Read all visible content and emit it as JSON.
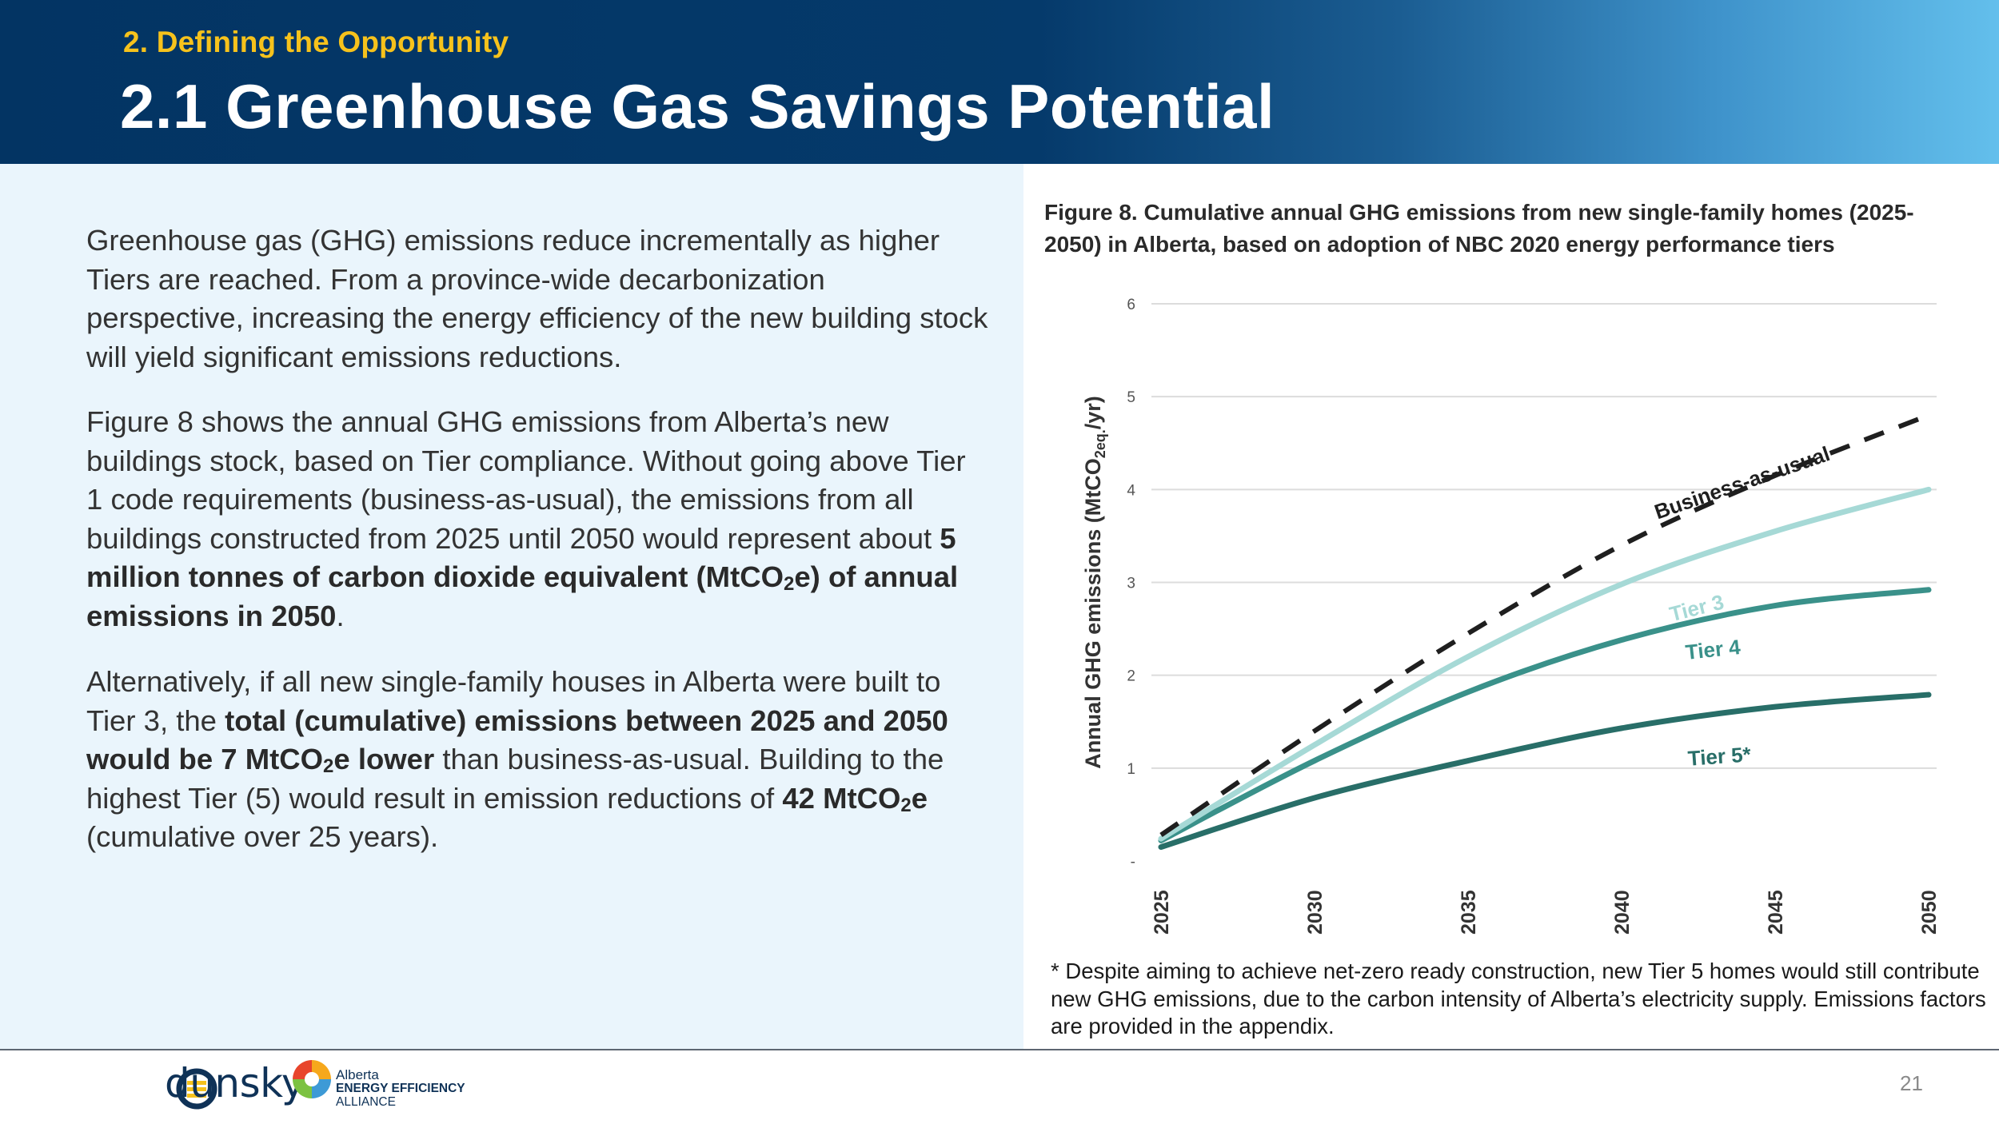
{
  "header": {
    "section_label": "2. Defining the Opportunity",
    "title": "2.1 Greenhouse Gas Savings Potential"
  },
  "body": {
    "p1": "Greenhouse gas (GHG) emissions reduce incrementally as higher Tiers are reached. From a province-wide decarbonization perspective, increasing the energy efficiency of the new building stock will yield significant emissions reductions.",
    "p2_intro": "Figure 8 shows the annual GHG emissions from Alberta’s new buildings stock, based on Tier compliance. Without going above Tier 1 code requirements (business-as-usual), the emissions from all buildings constructed from 2025 until 2050 would represent about ",
    "p2_bold_a": "5 million tonnes of carbon dioxide equivalent (MtCO",
    "p2_bold_b": "e) of annual emissions in 2050",
    "p2_end": ".",
    "p3_intro": "Alternatively, if all new single-family houses in Alberta were built to Tier 3, the ",
    "p3_bold_a": "total (cumulative) emissions between 2025 and 2050 would be 7 MtCO",
    "p3_bold_b": "e lower",
    "p3_mid": " than business-as-usual. Building to the highest Tier (5) would result in emission reductions of ",
    "p3_bold_c": "42 MtCO",
    "p3_bold_d": "e",
    "p3_end": " (cumulative over 25 years).",
    "sub2": "2"
  },
  "figure": {
    "caption": "Figure 8. Cumulative annual GHG emissions from new single-family homes (2025-2050) in Alberta, based on adoption of NBC 2020 energy performance tiers",
    "footnote": "* Despite aiming to achieve net-zero ready construction, new Tier 5 homes would still contribute new GHG emissions, due to the carbon intensity of Alberta’s electricity supply. Emissions factors are provided in the appendix."
  },
  "chart_data": {
    "type": "line",
    "title": "Figure 8. Cumulative annual GHG emissions from new single-family homes (2025-2050) in Alberta, based on adoption of NBC 2020 energy performance tiers",
    "xlabel": "",
    "ylabel_main": "Annual GHG emissions (MtCO",
    "ylabel_sub": "2eq.",
    "ylabel_end": "/yr)",
    "x": [
      2025,
      2030,
      2035,
      2040,
      2045,
      2050
    ],
    "x_ticks": [
      "2025",
      "2030",
      "2035",
      "2040",
      "2045",
      "2050"
    ],
    "xlim": [
      2025,
      2050
    ],
    "y_ticks": [
      {
        "value": 0,
        "label": "-"
      },
      {
        "value": 1,
        "label": "1"
      },
      {
        "value": 2,
        "label": "2"
      },
      {
        "value": 3,
        "label": "3"
      },
      {
        "value": 4,
        "label": "4"
      },
      {
        "value": 5,
        "label": "5"
      },
      {
        "value": 6,
        "label": "6"
      }
    ],
    "ylim": [
      0,
      6
    ],
    "grid": true,
    "series": [
      {
        "name": "Business-as-usual",
        "label": "Business-as-usual",
        "color": "#1f1f1f",
        "dashed": true,
        "values": [
          0.28,
          1.4,
          2.45,
          3.4,
          4.15,
          4.8
        ]
      },
      {
        "name": "Tier 3",
        "label": "Tier 3",
        "color": "#a6d9d6",
        "dashed": false,
        "values": [
          0.24,
          1.25,
          2.2,
          2.98,
          3.55,
          4.0
        ]
      },
      {
        "name": "Tier 4",
        "label": "Tier 4",
        "color": "#3a918a",
        "dashed": false,
        "values": [
          0.22,
          1.08,
          1.82,
          2.38,
          2.75,
          2.92
        ]
      },
      {
        "name": "Tier 5*",
        "label": "Tier 5*",
        "color": "#286e68",
        "dashed": false,
        "values": [
          0.15,
          0.68,
          1.08,
          1.43,
          1.66,
          1.79
        ]
      }
    ]
  },
  "footer": {
    "dunsky": "dunsky",
    "aeea_line1": "Alberta",
    "aeea_line2": "ENERGY EFFICIENCY",
    "aeea_line3": "ALLIANCE",
    "page_number": "21"
  },
  "colors": {
    "header_dark": "#033463",
    "header_light": "#63bfec",
    "accent_yellow": "#f6c21c",
    "panel_bg": "#eaf5fc"
  }
}
